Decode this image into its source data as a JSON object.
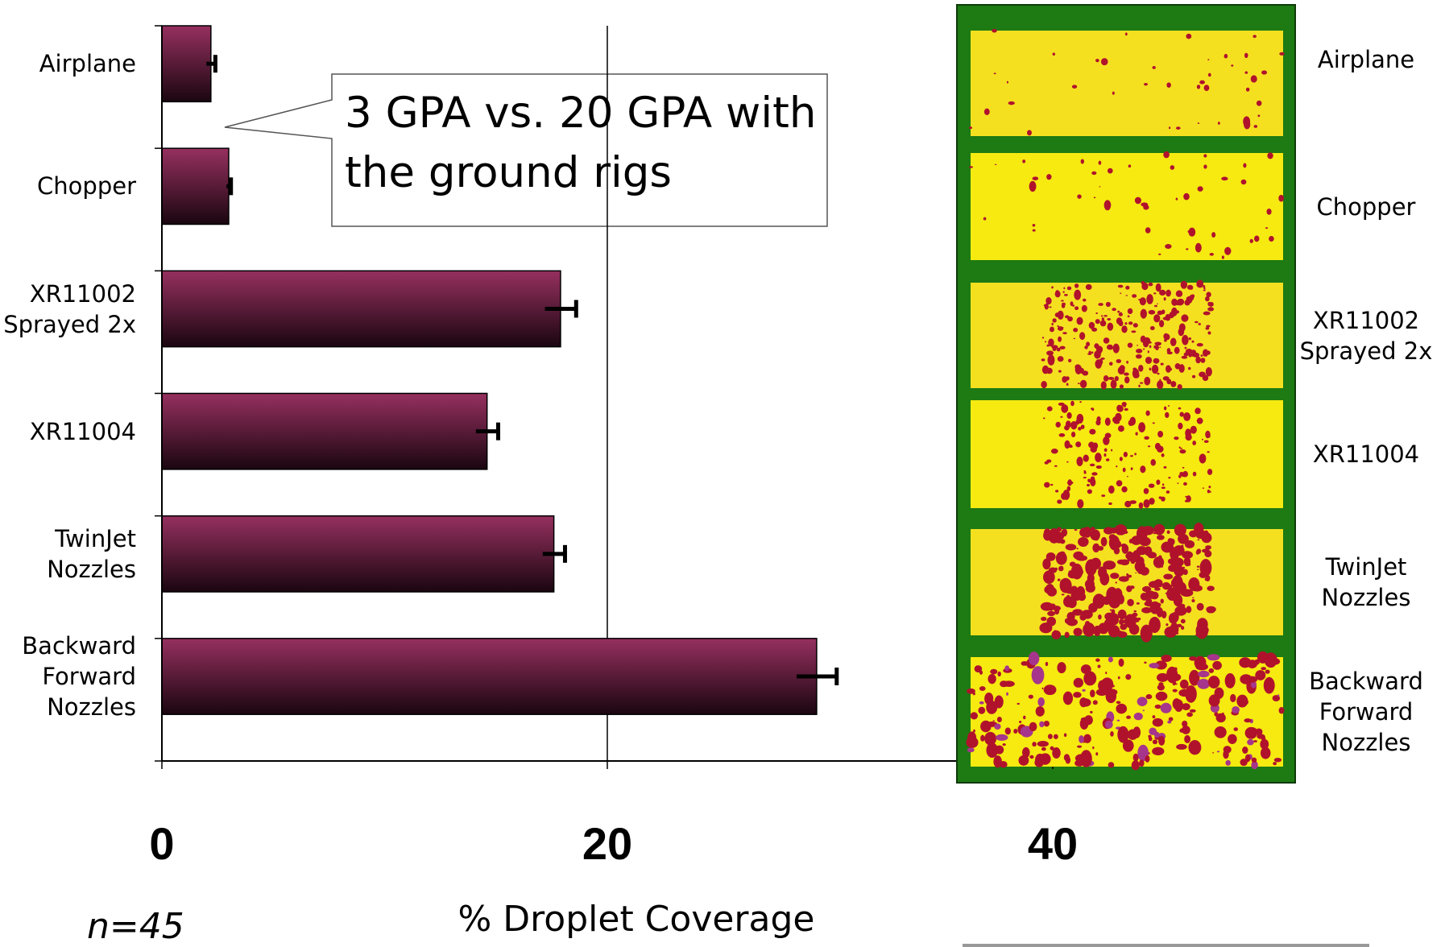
{
  "chart_data": {
    "type": "bar",
    "orientation": "horizontal",
    "categories": [
      "Airplane",
      "Chopper",
      "XR11002\nSprayed 2x",
      "XR11004",
      "TwinJet\nNozzles",
      "Backward\nForward\nNozzles"
    ],
    "values": [
      2.2,
      3.0,
      17.9,
      14.6,
      17.6,
      29.4
    ],
    "errors": [
      0.2,
      0.1,
      0.7,
      0.5,
      0.5,
      0.9
    ],
    "color": "#96305f",
    "xlim": [
      0,
      40
    ],
    "xticks": [
      0,
      20,
      40
    ],
    "grid": true,
    "x_label": "% Droplet Coverage",
    "annotation": "3 GPA vs. 20 GPA with the ground rigs",
    "sample_size": "n=45",
    "photo_labels": [
      "Airplane",
      "Chopper",
      "XR11002\nSprayed 2x",
      "XR11004",
      "TwinJet\nNozzles",
      "Backward\nForward\nNozzles"
    ]
  }
}
